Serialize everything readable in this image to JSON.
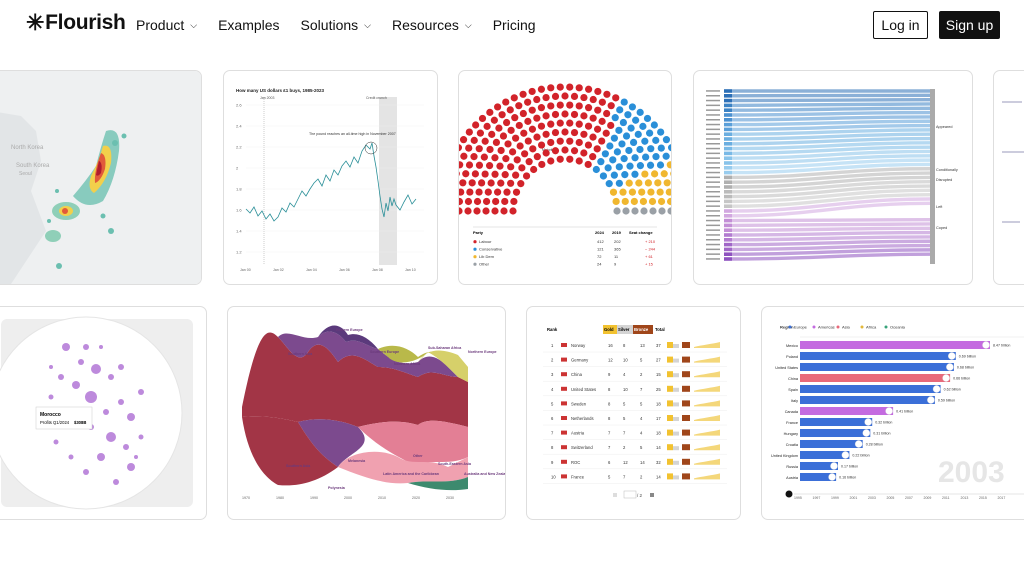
{
  "brand": {
    "logo_star": "✳",
    "logo_text": "Flourish"
  },
  "nav": {
    "items": [
      {
        "label": "Product",
        "has_dropdown": true
      },
      {
        "label": "Examples",
        "has_dropdown": false
      },
      {
        "label": "Solutions",
        "has_dropdown": true
      },
      {
        "label": "Resources",
        "has_dropdown": true
      },
      {
        "label": "Pricing",
        "has_dropdown": false
      }
    ],
    "chevron": "⌄",
    "login_label": "Log in",
    "signup_label": "Sign up"
  },
  "gallery": {
    "heatmap": {
      "labels": [
        "North Korea",
        "South Korea",
        "Seoul"
      ]
    },
    "line": {
      "title": "How many US dollars £1 buys, 1985-2023",
      "yticks": [
        "2.6",
        "2.4",
        "2.2",
        "2",
        "1.8",
        "1.6",
        "1.4",
        "1.2"
      ],
      "xticks": [
        "Jan 00",
        "Jan 02",
        "Jan 04",
        "Jan 06",
        "Jan 08",
        "Jan 10"
      ],
      "annotations": [
        "Jan 2003",
        "Credit crunch"
      ],
      "callout": "The pound reaches an all-time high in November 2007"
    },
    "parliament": {
      "majority": "Majority",
      "headers": [
        "Party",
        "2024",
        "2019",
        "Seat change"
      ],
      "rows": [
        {
          "party": "Labour",
          "y2024": "412",
          "y2019": "202",
          "change": "+ 210",
          "color": "#d2232a"
        },
        {
          "party": "Conservative",
          "y2024": "121",
          "y2019": "365",
          "change": "− 244",
          "color": "#2a8fd8"
        },
        {
          "party": "Lib Dem",
          "y2024": "72",
          "y2019": "11",
          "change": "+ 61",
          "color": "#f0b72f"
        },
        {
          "party": "Other",
          "y2024": "24",
          "y2019": "9",
          "change": "+ 15",
          "color": "#9aa0a6"
        }
      ]
    },
    "sankey": {
      "right_labels": [
        "Appeared",
        "Conditionally",
        "Disrupted",
        "Left",
        "Coped"
      ]
    },
    "globe": {
      "tooltip_title": "Morocco",
      "tooltip_line": "Profits Q1/2024",
      "tooltip_value": "$308B"
    },
    "streamgraph": {
      "labels": [
        "Eastern Europe",
        "Southern Asia",
        "Southern Europe",
        "Northern Africa",
        "Sub-Saharan Africa",
        "Northern Europe",
        "Southern Asia",
        "Melanesia",
        "Polynesia",
        "Latin America and the Caribbean",
        "Other",
        "South-Eastern Asia",
        "Australia and New Zealand"
      ],
      "xticks": [
        "1970",
        "1980",
        "1990",
        "2000",
        "2010",
        "2020",
        "2030"
      ]
    },
    "medals": {
      "headers": [
        "Rank",
        "Gold",
        "Silver",
        "Bronze",
        "Total"
      ],
      "rows": [
        {
          "rank": "1",
          "country": "Norway",
          "g": "16",
          "s": "8",
          "b": "13",
          "t": "37"
        },
        {
          "rank": "2",
          "country": "Germany",
          "g": "12",
          "s": "10",
          "b": "5",
          "t": "27"
        },
        {
          "rank": "3",
          "country": "China",
          "g": "9",
          "s": "4",
          "b": "2",
          "t": "15"
        },
        {
          "rank": "4",
          "country": "United States",
          "g": "8",
          "s": "10",
          "b": "7",
          "t": "25"
        },
        {
          "rank": "5",
          "country": "Sweden",
          "g": "8",
          "s": "5",
          "b": "5",
          "t": "18"
        },
        {
          "rank": "6",
          "country": "Netherlands",
          "g": "8",
          "s": "5",
          "b": "4",
          "t": "17"
        },
        {
          "rank": "7",
          "country": "Austria",
          "g": "7",
          "s": "7",
          "b": "4",
          "t": "18"
        },
        {
          "rank": "8",
          "country": "Switzerland",
          "g": "7",
          "s": "2",
          "b": "5",
          "t": "14"
        },
        {
          "rank": "9",
          "country": "ROC",
          "g": "6",
          "s": "12",
          "b": "14",
          "t": "32"
        },
        {
          "rank": "10",
          "country": "France",
          "g": "5",
          "s": "7",
          "b": "2",
          "t": "14"
        }
      ],
      "pager": "/ 2"
    },
    "barrace": {
      "legend": [
        "Region",
        "Europe",
        "Americas",
        "Asia",
        "Africa",
        "Oceania"
      ],
      "year": "2003",
      "rows": [
        {
          "country": "Mexico",
          "value": "8.47 trillion",
          "color": "#c46be0"
        },
        {
          "country": "Poland",
          "value": "0.69 billion",
          "color": "#3b6fd8"
        },
        {
          "country": "United States",
          "value": "0.68 billion",
          "color": "#3b6fd8"
        },
        {
          "country": "China",
          "value": "0.66 billion",
          "color": "#e8697a"
        },
        {
          "country": "Spain",
          "value": "0.62 billion",
          "color": "#3b6fd8"
        },
        {
          "country": "Italy",
          "value": "0.59 billion",
          "color": "#3b6fd8"
        },
        {
          "country": "Canada",
          "value": "0.41 billion",
          "color": "#c46be0"
        },
        {
          "country": "France",
          "value": "0.32 billion",
          "color": "#3b6fd8"
        },
        {
          "country": "Hungary",
          "value": "0.31 billion",
          "color": "#3b6fd8"
        },
        {
          "country": "Croatia",
          "value": "0.28 billion",
          "color": "#3b6fd8"
        },
        {
          "country": "United Kingdom",
          "value": "0.22 billion",
          "color": "#3b6fd8"
        },
        {
          "country": "Russia",
          "value": "0.17 billion",
          "color": "#3b6fd8"
        },
        {
          "country": "Austria",
          "value": "0.16 billion",
          "color": "#3b6fd8"
        }
      ],
      "xticks": [
        "1995",
        "1997",
        "1999",
        "2001",
        "2003",
        "2005",
        "2007",
        "2009",
        "2011",
        "2013",
        "2015",
        "2017"
      ]
    }
  }
}
